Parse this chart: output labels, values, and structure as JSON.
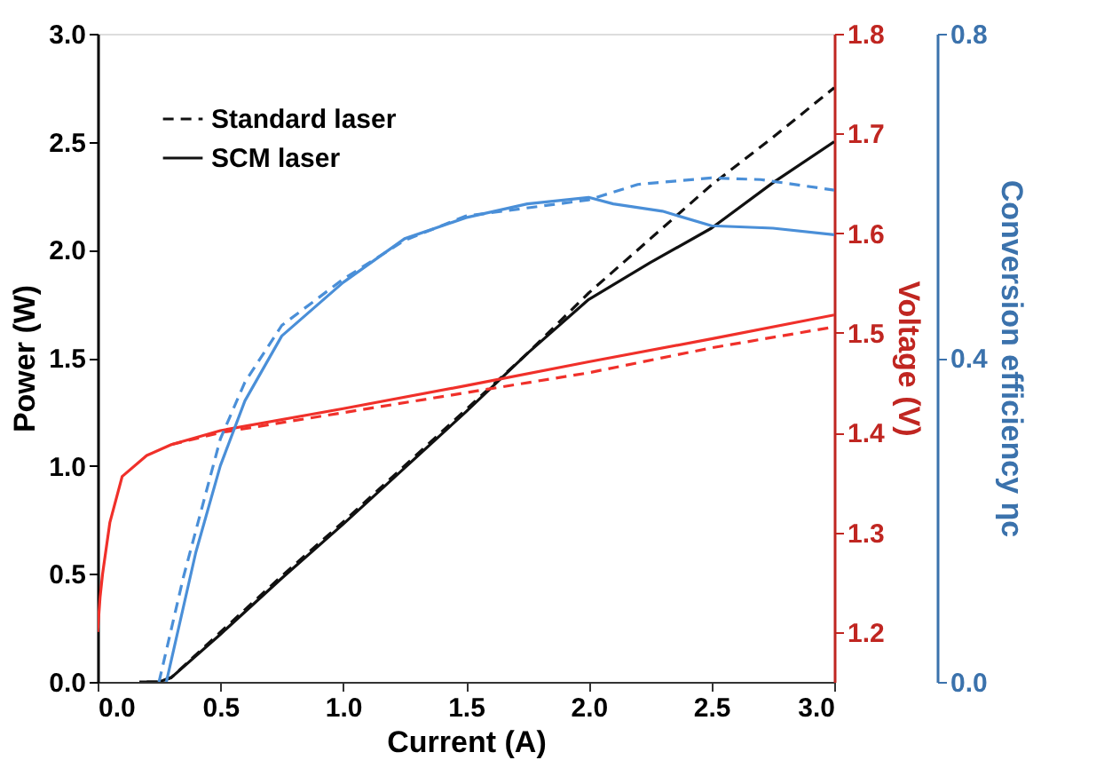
{
  "chart_data": {
    "type": "line",
    "xlabel": "Current (A)",
    "ylabel": "Power (W)",
    "y2label": "Voltage (V)",
    "y3label": "Conversion efficiency ηc",
    "xlim": [
      0,
      3.0
    ],
    "xticks": [
      {
        "value": 0,
        "label": "0.0"
      },
      {
        "value": 0.5,
        "label": "0.5"
      },
      {
        "value": 1,
        "label": "1.0"
      },
      {
        "value": 1.5,
        "label": "1.5"
      },
      {
        "value": 2,
        "label": "2.0"
      },
      {
        "value": 2.5,
        "label": "2.5"
      },
      {
        "value": 3,
        "label": "3.0"
      }
    ],
    "ylim": [
      0,
      3.0
    ],
    "yticks": [
      {
        "value": 0,
        "label": "0.0"
      },
      {
        "value": 0.5,
        "label": "0.5"
      },
      {
        "value": 1,
        "label": "1.0"
      },
      {
        "value": 1.5,
        "label": "1.5"
      },
      {
        "value": 2,
        "label": "2.0"
      },
      {
        "value": 2.5,
        "label": "2.5"
      },
      {
        "value": 3,
        "label": "3.0"
      }
    ],
    "y2lim": [
      1.15,
      1.8
    ],
    "y2ticks": [
      {
        "value": 1.2,
        "label": "1.2"
      },
      {
        "value": 1.3,
        "label": "1.3"
      },
      {
        "value": 1.4,
        "label": "1.4"
      },
      {
        "value": 1.5,
        "label": "1.5"
      },
      {
        "value": 1.6,
        "label": "1.6"
      },
      {
        "value": 1.7,
        "label": "1.7"
      },
      {
        "value": 1.8,
        "label": "1.8"
      }
    ],
    "y3lim": [
      0,
      0.8
    ],
    "y3ticks": [
      {
        "value": 0,
        "label": "0.0"
      },
      {
        "value": 0.4,
        "label": "0.4"
      },
      {
        "value": 0.8,
        "label": "0.8"
      }
    ],
    "legend": "top left",
    "grid": false,
    "series": [
      {
        "name": "Standard laser",
        "color": "#111111",
        "axis": "y",
        "line_style": "dashed",
        "x": [
          0.2,
          0.25,
          0.3,
          0.5,
          0.75,
          1.0,
          1.25,
          1.5,
          1.75,
          2.0,
          2.25,
          2.5,
          2.75,
          3.0
        ],
        "values": [
          0,
          0,
          0.02,
          0.23,
          0.49,
          0.74,
          1.0,
          1.26,
          1.52,
          1.8,
          2.05,
          2.3,
          2.52,
          2.75
        ]
      },
      {
        "name": "SCM laser",
        "color": "#111111",
        "axis": "y",
        "line_style": "solid",
        "x": [
          0.17,
          0.25,
          0.3,
          0.5,
          0.75,
          1.0,
          1.25,
          1.5,
          1.75,
          2.0,
          2.25,
          2.5,
          2.75,
          3.0
        ],
        "values": [
          0,
          0,
          0.02,
          0.22,
          0.48,
          0.73,
          0.99,
          1.25,
          1.52,
          1.77,
          1.94,
          2.1,
          2.31,
          2.5
        ]
      },
      {
        "color": "#f0302a",
        "axis": "y2",
        "line_style": "dashed",
        "x": [
          0.3,
          0.5,
          1.0,
          1.5,
          2.0,
          2.5,
          3.0
        ],
        "values": [
          1.388,
          1.4,
          1.42,
          1.44,
          1.46,
          1.485,
          1.506
        ]
      },
      {
        "color": "#f0302a",
        "axis": "y2",
        "line_style": "solid",
        "x": [
          0,
          0.01,
          0.02,
          0.05,
          0.1,
          0.2,
          0.3,
          0.5,
          1.0,
          1.5,
          2.0,
          2.5,
          3.0
        ],
        "values": [
          1.2,
          1.235,
          1.258,
          1.31,
          1.356,
          1.377,
          1.388,
          1.402,
          1.424,
          1.447,
          1.471,
          1.494,
          1.518
        ]
      },
      {
        "color": "#4a8fd8",
        "axis": "y3",
        "line_style": "dashed",
        "x": [
          0.25,
          0.35,
          0.5,
          0.6,
          0.75,
          1.0,
          1.25,
          1.5,
          2.0,
          2.2,
          2.5,
          2.7,
          3.0
        ],
        "values": [
          0,
          0.13,
          0.3,
          0.37,
          0.44,
          0.497,
          0.545,
          0.575,
          0.595,
          0.614,
          0.622,
          0.62,
          0.607
        ]
      },
      {
        "color": "#4a8fd8",
        "axis": "y3",
        "line_style": "solid",
        "x": [
          0.28,
          0.4,
          0.5,
          0.6,
          0.75,
          1.0,
          1.25,
          1.5,
          1.75,
          2.0,
          2.1,
          2.3,
          2.5,
          2.75,
          3.0
        ],
        "values": [
          0,
          0.16,
          0.267,
          0.347,
          0.427,
          0.493,
          0.547,
          0.573,
          0.59,
          0.598,
          0.59,
          0.581,
          0.563,
          0.56,
          0.552
        ]
      }
    ]
  }
}
